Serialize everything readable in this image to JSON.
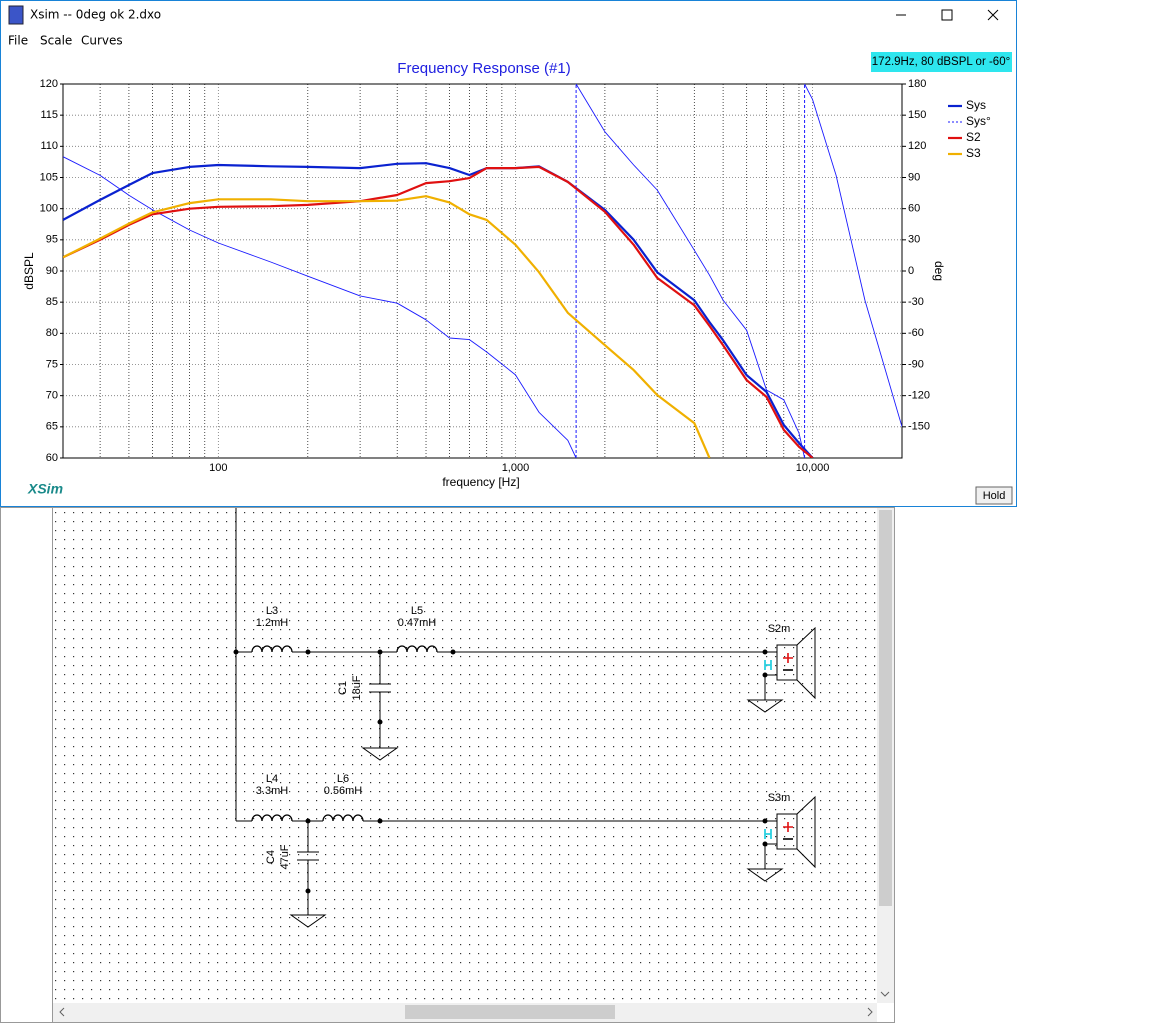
{
  "window": {
    "title": "Xsim -- 0deg ok 2.dxo",
    "menu": [
      "File",
      "Scale",
      "Curves"
    ]
  },
  "cursor_readout": "172.9Hz, 80 dBSPL or -60°",
  "hold_button": "Hold",
  "logo": "XSim",
  "chart_data": {
    "type": "line",
    "title": "Frequency Response (#1)",
    "x_label": "frequency [Hz]",
    "y_label": "dBSPL",
    "y2_label": "deg",
    "x_log": true,
    "xlim": [
      30,
      20000
    ],
    "xticks": [
      100,
      {
        "value": 1000,
        "label": "1,000"
      },
      {
        "value": 10000,
        "label": "10,000"
      }
    ],
    "ylim": [
      60,
      120
    ],
    "yticks": [
      60,
      65,
      70,
      75,
      80,
      85,
      90,
      95,
      100,
      105,
      110,
      115,
      120
    ],
    "y2lim": [
      -180,
      180
    ],
    "y2ticks": [
      180,
      150,
      120,
      90,
      60,
      30,
      0,
      -30,
      -60,
      -90,
      -120,
      -150
    ],
    "grid": true,
    "legend": "right",
    "x": [
      30,
      40,
      50,
      60,
      80,
      100,
      150,
      200,
      300,
      400,
      500,
      600,
      700,
      800,
      1000,
      1200,
      1500,
      2000,
      2500,
      3000,
      4000,
      4500,
      5000,
      6000,
      7000,
      8000,
      9000,
      10000
    ],
    "series": [
      {
        "name": "Sys",
        "color": "#0a22d0",
        "width": 2.2,
        "values": [
          98.2,
          101.4,
          103.8,
          105.7,
          106.7,
          107,
          106.8,
          106.7,
          106.5,
          107.2,
          107.3,
          106.5,
          105.4,
          106.5,
          106.5,
          106.8,
          104.3,
          99.8,
          95,
          89.8,
          85.3,
          81.8,
          78.9,
          73.3,
          70.6,
          65.3,
          62.4,
          60
        ]
      },
      {
        "name": "Sys°",
        "color": "#1a1aff",
        "width": 0.9,
        "dashed": true,
        "axis": "y2",
        "x": [
          30,
          40,
          50,
          60,
          80,
          100,
          150,
          200,
          300,
          400,
          500,
          600,
          700,
          800,
          1000,
          1200,
          1500,
          1600,
          1600,
          1600,
          2000,
          2500,
          3000,
          4000,
          4500,
          5000,
          6000,
          7000,
          8000,
          9000,
          9400,
          9400,
          9400,
          10000,
          12000,
          15000,
          20000
        ],
        "values": [
          110,
          92,
          73,
          59,
          39.5,
          27,
          8.7,
          -5,
          -24,
          -31,
          -47,
          -64.5,
          -66,
          -78,
          -100,
          -136,
          -163,
          -180,
          null,
          180,
          134,
          102,
          78,
          20,
          -4,
          -28,
          -57,
          -114.5,
          -124,
          -156,
          -180,
          null,
          180,
          165,
          92,
          -28,
          -150
        ]
      },
      {
        "name": "S2",
        "color": "#e01010",
        "width": 2.2,
        "values": [
          92.2,
          95,
          97.4,
          99.1,
          100,
          100.3,
          100.4,
          100.6,
          101.2,
          102.2,
          104.1,
          104.4,
          104.9,
          106.5,
          106.5,
          106.7,
          104.3,
          99.5,
          94.2,
          88.9,
          84.5,
          81.2,
          78.1,
          72.5,
          69.8,
          64.5,
          61.8,
          60
        ]
      },
      {
        "name": "S3",
        "color": "#f0b000",
        "width": 2.2,
        "values": [
          92.2,
          95.2,
          97.6,
          99.4,
          100.9,
          101.5,
          101.5,
          101.2,
          101.2,
          101.3,
          102,
          101,
          99.1,
          98.2,
          94.2,
          89.8,
          83.3,
          78.1,
          74.1,
          70.1,
          65.6,
          60,
          null,
          null,
          null,
          null,
          null,
          null
        ]
      }
    ]
  },
  "schematic": {
    "components": [
      {
        "ref": "L3",
        "value": "1.2mH"
      },
      {
        "ref": "L5",
        "value": "0.47mH"
      },
      {
        "ref": "C1",
        "value": "18uF"
      },
      {
        "ref": "L4",
        "value": "3.3mH"
      },
      {
        "ref": "L6",
        "value": "0.56mH"
      },
      {
        "ref": "C4",
        "value": "47uF"
      }
    ],
    "speakers": [
      "S2m",
      "S3m"
    ]
  }
}
